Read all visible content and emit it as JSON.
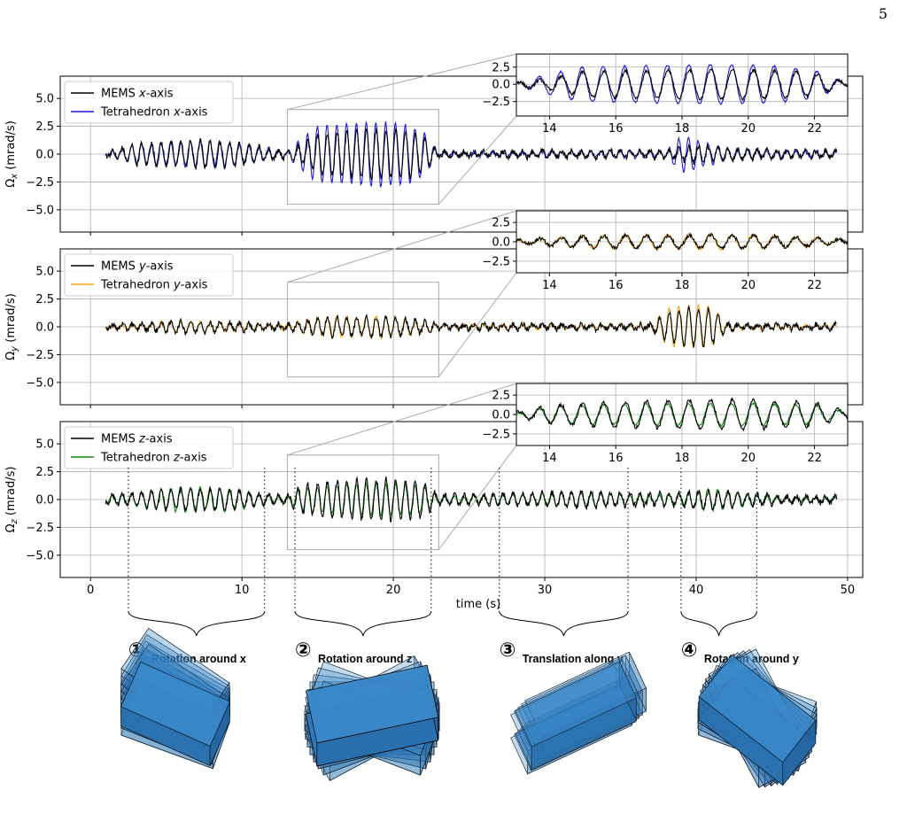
{
  "page_number": "5",
  "x_axis_label": "time (s)",
  "chart_data": [
    {
      "type": "line",
      "ylabel": "Ω_x (mrad/s)",
      "xlim": [
        -2,
        51
      ],
      "ylim": [
        -7,
        7
      ],
      "xticks": [
        0,
        10,
        20,
        30,
        40,
        50
      ],
      "yticks": [
        5.0,
        2.5,
        0.0,
        -2.5,
        -5.0
      ],
      "ytick_labels": [
        "5.0",
        "2.5",
        "0.0",
        "−2.5",
        "−5.0"
      ],
      "grid": true,
      "legend": "top-left",
      "series": [
        {
          "name": "MEMS x-axis",
          "color": "#000000",
          "x": [
            1,
            3,
            5,
            7,
            9,
            11,
            13,
            14,
            15,
            16,
            17,
            18,
            19,
            20,
            21,
            22,
            23,
            25,
            30,
            35,
            38,
            39,
            40,
            42,
            44,
            46,
            49
          ],
          "y": [
            0.1,
            0.9,
            1.0,
            1.2,
            1.1,
            0.7,
            0.3,
            0.8,
            1.8,
            1.9,
            2.0,
            2.1,
            2.2,
            2.1,
            2.0,
            1.6,
            0.2,
            0.2,
            0.3,
            0.3,
            0.3,
            0.5,
            0.8,
            0.5,
            0.4,
            0.3,
            0.3
          ]
        },
        {
          "name": "Tetrahedron x-axis",
          "color": "#1a1adf",
          "x": [
            1,
            3,
            5,
            7,
            9,
            11,
            13,
            14,
            15,
            16,
            17,
            18,
            19,
            20,
            21,
            22,
            23,
            25,
            30,
            35,
            38,
            39,
            40,
            42,
            44,
            46,
            49
          ],
          "y": [
            0.1,
            0.9,
            1.0,
            1.2,
            1.1,
            0.7,
            0.2,
            1.5,
            2.5,
            2.6,
            2.7,
            2.8,
            2.9,
            2.8,
            2.6,
            2.0,
            0.2,
            0.2,
            0.2,
            0.3,
            0.3,
            1.6,
            1.3,
            0.5,
            0.4,
            0.3,
            0.3
          ]
        }
      ],
      "inset": {
        "xlim": [
          13,
          23
        ],
        "ylim": [
          -4.6,
          4.4
        ],
        "xticks": [
          14,
          16,
          18,
          20,
          22
        ],
        "xtick_labels": [
          "14",
          "16",
          "18",
          "20",
          "22"
        ],
        "yticks": [
          2.5,
          0.0,
          -2.5
        ],
        "ytick_labels": [
          "2.5",
          "0.0",
          "−2.5"
        ],
        "zoom_box": {
          "x": [
            13,
            23
          ],
          "y": [
            -4.5,
            4.0
          ]
        }
      }
    },
    {
      "type": "line",
      "ylabel": "Ω_y (mrad/s)",
      "xlim": [
        -2,
        51
      ],
      "ylim": [
        -7,
        7
      ],
      "xticks": [
        0,
        10,
        20,
        30,
        40,
        50
      ],
      "yticks": [
        5.0,
        2.5,
        0.0,
        -2.5,
        -5.0
      ],
      "ytick_labels": [
        "5.0",
        "2.5",
        "0.0",
        "−2.5",
        "−5.0"
      ],
      "grid": true,
      "legend": "top-left",
      "series": [
        {
          "name": "MEMS y-axis",
          "color": "#000000",
          "x": [
            1,
            3,
            5,
            7,
            9,
            11,
            13,
            14,
            15,
            16,
            17,
            18,
            19,
            20,
            21,
            22,
            23,
            25,
            30,
            35,
            37,
            38,
            39,
            40,
            41,
            42,
            44,
            46,
            49
          ],
          "y": [
            0.2,
            0.3,
            0.4,
            0.5,
            0.4,
            0.3,
            0.2,
            0.5,
            0.7,
            0.8,
            0.8,
            0.8,
            0.9,
            0.8,
            0.7,
            0.5,
            0.2,
            0.2,
            0.2,
            0.2,
            0.2,
            1.2,
            1.6,
            1.7,
            1.6,
            0.3,
            0.2,
            0.2,
            0.2
          ]
        },
        {
          "name": "Tetrahedron y-axis",
          "color": "#f5a916",
          "x": [
            1,
            3,
            5,
            7,
            9,
            11,
            13,
            14,
            15,
            16,
            17,
            18,
            19,
            20,
            21,
            22,
            23,
            25,
            30,
            35,
            37,
            38,
            39,
            40,
            41,
            42,
            44,
            46,
            49
          ],
          "y": [
            0.2,
            0.3,
            0.4,
            0.5,
            0.4,
            0.3,
            0.2,
            0.5,
            0.8,
            0.9,
            0.9,
            0.9,
            1.0,
            0.9,
            0.8,
            0.6,
            0.2,
            0.2,
            0.2,
            0.2,
            0.2,
            1.5,
            1.9,
            2.0,
            1.8,
            0.3,
            0.2,
            0.2,
            0.2
          ]
        }
      ],
      "inset": {
        "xlim": [
          13,
          23
        ],
        "ylim": [
          -4.0,
          4.0
        ],
        "xticks": [
          14,
          16,
          18,
          20,
          22
        ],
        "xtick_labels": [
          "14",
          "16",
          "18",
          "20",
          "22"
        ],
        "yticks": [
          2.5,
          0.0,
          -2.5
        ],
        "ytick_labels": [
          "2.5",
          "0.0",
          "−2.5"
        ],
        "zoom_box": {
          "x": [
            13,
            23
          ],
          "y": [
            -4.5,
            4.0
          ]
        }
      }
    },
    {
      "type": "line",
      "ylabel": "Ω_z (mrad/s)",
      "xlim": [
        -2,
        51
      ],
      "ylim": [
        -7,
        7
      ],
      "xticks": [
        0,
        10,
        20,
        30,
        40,
        50
      ],
      "yticks": [
        5.0,
        2.5,
        0.0,
        -2.5,
        -5.0
      ],
      "ytick_labels": [
        "5.0",
        "2.5",
        "0.0",
        "−2.5",
        "−5.0"
      ],
      "grid": true,
      "legend": "top-left",
      "series": [
        {
          "name": "MEMS z-axis",
          "color": "#000000",
          "x": [
            1,
            3,
            5,
            7,
            9,
            11,
            13,
            14,
            16,
            18,
            20,
            22,
            23,
            25,
            27,
            30,
            33,
            35,
            37,
            39,
            41,
            43,
            45,
            47,
            49
          ],
          "y": [
            0.4,
            0.6,
            0.9,
            1.0,
            0.9,
            0.6,
            0.3,
            1.2,
            1.6,
            1.8,
            1.9,
            1.5,
            0.4,
            0.4,
            0.5,
            0.6,
            0.7,
            0.6,
            0.5,
            0.6,
            0.8,
            0.6,
            0.4,
            0.3,
            0.3
          ]
        },
        {
          "name": "Tetrahedron z-axis",
          "color": "#108a10",
          "x": [
            1,
            3,
            5,
            7,
            9,
            11,
            13,
            14,
            16,
            18,
            20,
            22,
            23,
            25,
            27,
            30,
            33,
            35,
            37,
            39,
            41,
            43,
            45,
            47,
            49
          ],
          "y": [
            0.3,
            0.6,
            1.0,
            1.1,
            1.0,
            0.6,
            0.2,
            1.0,
            1.3,
            1.4,
            1.4,
            1.2,
            0.3,
            0.3,
            0.4,
            0.6,
            0.6,
            0.5,
            0.3,
            0.6,
            1.0,
            0.7,
            0.3,
            0.2,
            0.2
          ]
        }
      ],
      "inset": {
        "xlim": [
          13,
          23
        ],
        "ylim": [
          -4.0,
          4.0
        ],
        "xticks": [
          14,
          16,
          18,
          20,
          22
        ],
        "xtick_labels": [
          "14",
          "16",
          "18",
          "20",
          "22"
        ],
        "yticks": [
          2.5,
          0.0,
          -2.5
        ],
        "ytick_labels": [
          "2.5",
          "0.0",
          "−2.5"
        ],
        "zoom_box": {
          "x": [
            13,
            23
          ],
          "y": [
            -4.5,
            4.0
          ]
        }
      },
      "segments": [
        {
          "number": "①",
          "label": "Rotation around x",
          "x_range": [
            2.5,
            11.5
          ]
        },
        {
          "number": "②",
          "label": "Rotation around z",
          "x_range": [
            13.5,
            22.5
          ]
        },
        {
          "number": "③",
          "label": "Translation along y",
          "x_range": [
            27,
            35.5
          ]
        },
        {
          "number": "④",
          "label": "Rotation around y",
          "x_range": [
            39,
            44
          ]
        }
      ]
    }
  ]
}
